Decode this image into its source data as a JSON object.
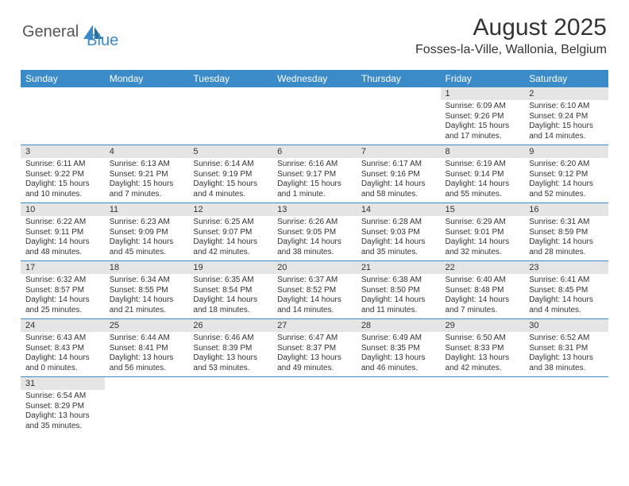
{
  "logo": {
    "part1": "General",
    "part2": "Blue"
  },
  "title": "August 2025",
  "location": "Fosses-la-Ville, Wallonia, Belgium",
  "weekdays": [
    "Sunday",
    "Monday",
    "Tuesday",
    "Wednesday",
    "Thursday",
    "Friday",
    "Saturday"
  ],
  "colors": {
    "header_bg": "#3b8bc9",
    "header_text": "#ffffff",
    "daynum_bg": "#e5e5e5",
    "border": "#3b8bc9",
    "text": "#333333"
  },
  "font": {
    "family": "Arial",
    "body_size_pt": 8,
    "header_size_pt": 9,
    "title_size_pt": 22
  },
  "weeks": [
    [
      null,
      null,
      null,
      null,
      null,
      {
        "n": "1",
        "sr": "Sunrise: 6:09 AM",
        "ss": "Sunset: 9:26 PM",
        "dl1": "Daylight: 15 hours",
        "dl2": "and 17 minutes."
      },
      {
        "n": "2",
        "sr": "Sunrise: 6:10 AM",
        "ss": "Sunset: 9:24 PM",
        "dl1": "Daylight: 15 hours",
        "dl2": "and 14 minutes."
      }
    ],
    [
      {
        "n": "3",
        "sr": "Sunrise: 6:11 AM",
        "ss": "Sunset: 9:22 PM",
        "dl1": "Daylight: 15 hours",
        "dl2": "and 10 minutes."
      },
      {
        "n": "4",
        "sr": "Sunrise: 6:13 AM",
        "ss": "Sunset: 9:21 PM",
        "dl1": "Daylight: 15 hours",
        "dl2": "and 7 minutes."
      },
      {
        "n": "5",
        "sr": "Sunrise: 6:14 AM",
        "ss": "Sunset: 9:19 PM",
        "dl1": "Daylight: 15 hours",
        "dl2": "and 4 minutes."
      },
      {
        "n": "6",
        "sr": "Sunrise: 6:16 AM",
        "ss": "Sunset: 9:17 PM",
        "dl1": "Daylight: 15 hours",
        "dl2": "and 1 minute."
      },
      {
        "n": "7",
        "sr": "Sunrise: 6:17 AM",
        "ss": "Sunset: 9:16 PM",
        "dl1": "Daylight: 14 hours",
        "dl2": "and 58 minutes."
      },
      {
        "n": "8",
        "sr": "Sunrise: 6:19 AM",
        "ss": "Sunset: 9:14 PM",
        "dl1": "Daylight: 14 hours",
        "dl2": "and 55 minutes."
      },
      {
        "n": "9",
        "sr": "Sunrise: 6:20 AM",
        "ss": "Sunset: 9:12 PM",
        "dl1": "Daylight: 14 hours",
        "dl2": "and 52 minutes."
      }
    ],
    [
      {
        "n": "10",
        "sr": "Sunrise: 6:22 AM",
        "ss": "Sunset: 9:11 PM",
        "dl1": "Daylight: 14 hours",
        "dl2": "and 48 minutes."
      },
      {
        "n": "11",
        "sr": "Sunrise: 6:23 AM",
        "ss": "Sunset: 9:09 PM",
        "dl1": "Daylight: 14 hours",
        "dl2": "and 45 minutes."
      },
      {
        "n": "12",
        "sr": "Sunrise: 6:25 AM",
        "ss": "Sunset: 9:07 PM",
        "dl1": "Daylight: 14 hours",
        "dl2": "and 42 minutes."
      },
      {
        "n": "13",
        "sr": "Sunrise: 6:26 AM",
        "ss": "Sunset: 9:05 PM",
        "dl1": "Daylight: 14 hours",
        "dl2": "and 38 minutes."
      },
      {
        "n": "14",
        "sr": "Sunrise: 6:28 AM",
        "ss": "Sunset: 9:03 PM",
        "dl1": "Daylight: 14 hours",
        "dl2": "and 35 minutes."
      },
      {
        "n": "15",
        "sr": "Sunrise: 6:29 AM",
        "ss": "Sunset: 9:01 PM",
        "dl1": "Daylight: 14 hours",
        "dl2": "and 32 minutes."
      },
      {
        "n": "16",
        "sr": "Sunrise: 6:31 AM",
        "ss": "Sunset: 8:59 PM",
        "dl1": "Daylight: 14 hours",
        "dl2": "and 28 minutes."
      }
    ],
    [
      {
        "n": "17",
        "sr": "Sunrise: 6:32 AM",
        "ss": "Sunset: 8:57 PM",
        "dl1": "Daylight: 14 hours",
        "dl2": "and 25 minutes."
      },
      {
        "n": "18",
        "sr": "Sunrise: 6:34 AM",
        "ss": "Sunset: 8:55 PM",
        "dl1": "Daylight: 14 hours",
        "dl2": "and 21 minutes."
      },
      {
        "n": "19",
        "sr": "Sunrise: 6:35 AM",
        "ss": "Sunset: 8:54 PM",
        "dl1": "Daylight: 14 hours",
        "dl2": "and 18 minutes."
      },
      {
        "n": "20",
        "sr": "Sunrise: 6:37 AM",
        "ss": "Sunset: 8:52 PM",
        "dl1": "Daylight: 14 hours",
        "dl2": "and 14 minutes."
      },
      {
        "n": "21",
        "sr": "Sunrise: 6:38 AM",
        "ss": "Sunset: 8:50 PM",
        "dl1": "Daylight: 14 hours",
        "dl2": "and 11 minutes."
      },
      {
        "n": "22",
        "sr": "Sunrise: 6:40 AM",
        "ss": "Sunset: 8:48 PM",
        "dl1": "Daylight: 14 hours",
        "dl2": "and 7 minutes."
      },
      {
        "n": "23",
        "sr": "Sunrise: 6:41 AM",
        "ss": "Sunset: 8:45 PM",
        "dl1": "Daylight: 14 hours",
        "dl2": "and 4 minutes."
      }
    ],
    [
      {
        "n": "24",
        "sr": "Sunrise: 6:43 AM",
        "ss": "Sunset: 8:43 PM",
        "dl1": "Daylight: 14 hours",
        "dl2": "and 0 minutes."
      },
      {
        "n": "25",
        "sr": "Sunrise: 6:44 AM",
        "ss": "Sunset: 8:41 PM",
        "dl1": "Daylight: 13 hours",
        "dl2": "and 56 minutes."
      },
      {
        "n": "26",
        "sr": "Sunrise: 6:46 AM",
        "ss": "Sunset: 8:39 PM",
        "dl1": "Daylight: 13 hours",
        "dl2": "and 53 minutes."
      },
      {
        "n": "27",
        "sr": "Sunrise: 6:47 AM",
        "ss": "Sunset: 8:37 PM",
        "dl1": "Daylight: 13 hours",
        "dl2": "and 49 minutes."
      },
      {
        "n": "28",
        "sr": "Sunrise: 6:49 AM",
        "ss": "Sunset: 8:35 PM",
        "dl1": "Daylight: 13 hours",
        "dl2": "and 46 minutes."
      },
      {
        "n": "29",
        "sr": "Sunrise: 6:50 AM",
        "ss": "Sunset: 8:33 PM",
        "dl1": "Daylight: 13 hours",
        "dl2": "and 42 minutes."
      },
      {
        "n": "30",
        "sr": "Sunrise: 6:52 AM",
        "ss": "Sunset: 8:31 PM",
        "dl1": "Daylight: 13 hours",
        "dl2": "and 38 minutes."
      }
    ],
    [
      {
        "n": "31",
        "sr": "Sunrise: 6:54 AM",
        "ss": "Sunset: 8:29 PM",
        "dl1": "Daylight: 13 hours",
        "dl2": "and 35 minutes."
      },
      null,
      null,
      null,
      null,
      null,
      null
    ]
  ]
}
